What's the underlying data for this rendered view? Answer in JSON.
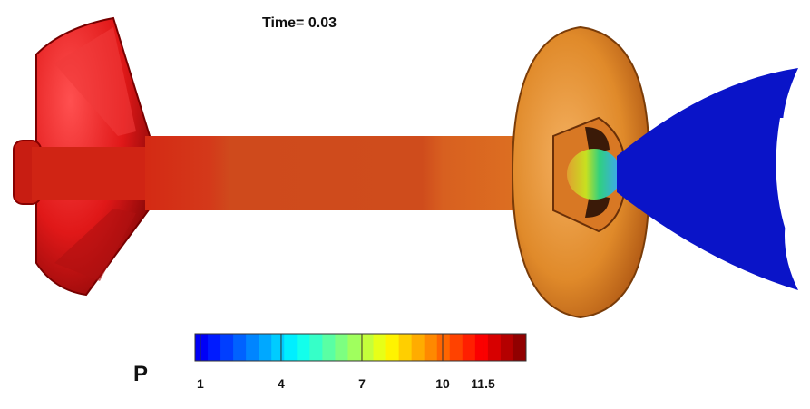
{
  "figure": {
    "title": "Time= 0.03",
    "colorbar": {
      "label": "P",
      "clim": [
        0.8,
        13.1
      ],
      "ticks": [
        1,
        4,
        7,
        10,
        11.5
      ]
    }
  }
}
